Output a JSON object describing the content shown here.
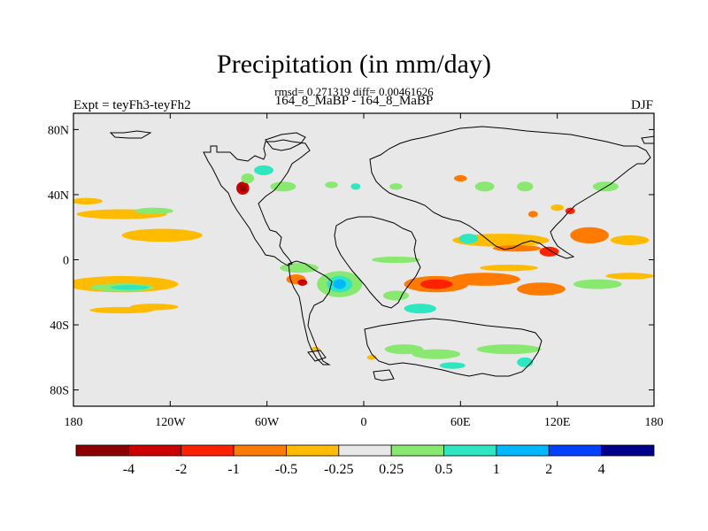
{
  "header": {
    "title": "Precipitation (in mm/day)",
    "stats": "rmsd= 0.271319 diff= 0.00461626",
    "subtitle": "164_8_MaBP - 164_8_MaBP",
    "left_label": "Expt = teyFh3-teyFh2",
    "right_label": "DJF"
  },
  "axes": {
    "lat_ticks": [
      {
        "value": 80,
        "label": "80N"
      },
      {
        "value": 40,
        "label": "40N"
      },
      {
        "value": 0,
        "label": "0"
      },
      {
        "value": -40,
        "label": "40S"
      },
      {
        "value": -80,
        "label": "80S"
      }
    ],
    "lon_ticks": [
      {
        "value": -180,
        "label": "180"
      },
      {
        "value": -120,
        "label": "120W"
      },
      {
        "value": -60,
        "label": "60W"
      },
      {
        "value": 0,
        "label": "0"
      },
      {
        "value": 60,
        "label": "60E"
      },
      {
        "value": 120,
        "label": "120E"
      },
      {
        "value": 180,
        "label": "180"
      }
    ],
    "lat_range": [
      -90,
      90
    ],
    "lon_range": [
      -180,
      180
    ]
  },
  "colorbar": {
    "colors": [
      "#8b0000",
      "#cc0000",
      "#ff2200",
      "#ff7a00",
      "#ffbb00",
      "#e8e8e8",
      "#88e870",
      "#2ee6c0",
      "#00b8ff",
      "#0040ff",
      "#00008b"
    ],
    "labels": [
      "-4",
      "-2",
      "-1",
      "-0.5",
      "-0.25",
      "0.25",
      "0.5",
      "1",
      "2",
      "4"
    ]
  },
  "colors": {
    "background": "#e8e8e8",
    "coast": "#000000"
  },
  "anomalies": [
    {
      "lon": -150,
      "lat": 28,
      "rx": 28,
      "ry": 3,
      "color": "#ffbb00"
    },
    {
      "lon": -172,
      "lat": 36,
      "rx": 10,
      "ry": 2,
      "color": "#ffbb00"
    },
    {
      "lon": -125,
      "lat": 15,
      "rx": 25,
      "ry": 4,
      "color": "#ffbb00"
    },
    {
      "lon": -150,
      "lat": -15,
      "rx": 35,
      "ry": 5,
      "color": "#ffbb00"
    },
    {
      "lon": -150,
      "lat": -17,
      "rx": 20,
      "ry": 2.5,
      "color": "#88e870"
    },
    {
      "lon": -145,
      "lat": -17,
      "rx": 12,
      "ry": 1.5,
      "color": "#2ee6c0"
    },
    {
      "lon": -130,
      "lat": 30,
      "rx": 12,
      "ry": 2,
      "color": "#88e870"
    },
    {
      "lon": -150,
      "lat": -31,
      "rx": 20,
      "ry": 2,
      "color": "#ffbb00"
    },
    {
      "lon": -130,
      "lat": -29,
      "rx": 15,
      "ry": 2,
      "color": "#ffbb00"
    },
    {
      "lon": -75,
      "lat": 44,
      "rx": 4,
      "ry": 4,
      "color": "#cc0000"
    },
    {
      "lon": -75,
      "lat": 44,
      "rx": 2,
      "ry": 2,
      "color": "#8b0000"
    },
    {
      "lon": -72,
      "lat": 50,
      "rx": 4,
      "ry": 3,
      "color": "#88e870"
    },
    {
      "lon": -62,
      "lat": 55,
      "rx": 6,
      "ry": 3,
      "color": "#2ee6c0"
    },
    {
      "lon": -50,
      "lat": 45,
      "rx": 8,
      "ry": 3,
      "color": "#88e870"
    },
    {
      "lon": -40,
      "lat": -5,
      "rx": 12,
      "ry": 3,
      "color": "#88e870"
    },
    {
      "lon": -42,
      "lat": -12,
      "rx": 6,
      "ry": 3,
      "color": "#ff7a00"
    },
    {
      "lon": -38,
      "lat": -14,
      "rx": 3,
      "ry": 2,
      "color": "#cc0000"
    },
    {
      "lon": -15,
      "lat": -15,
      "rx": 14,
      "ry": 8,
      "color": "#88e870"
    },
    {
      "lon": -15,
      "lat": -15,
      "rx": 8,
      "ry": 5,
      "color": "#2ee6c0"
    },
    {
      "lon": -15,
      "lat": -15,
      "rx": 4,
      "ry": 3,
      "color": "#00b8ff"
    },
    {
      "lon": 20,
      "lat": -22,
      "rx": 8,
      "ry": 3,
      "color": "#88e870"
    },
    {
      "lon": 35,
      "lat": -30,
      "rx": 10,
      "ry": 3,
      "color": "#2ee6c0"
    },
    {
      "lon": 20,
      "lat": 0,
      "rx": 15,
      "ry": 2,
      "color": "#88e870"
    },
    {
      "lon": 45,
      "lat": -15,
      "rx": 20,
      "ry": 5,
      "color": "#ff7a00"
    },
    {
      "lon": 45,
      "lat": -15,
      "rx": 10,
      "ry": 3,
      "color": "#ff2200"
    },
    {
      "lon": 75,
      "lat": -12,
      "rx": 22,
      "ry": 4,
      "color": "#ff7a00"
    },
    {
      "lon": 110,
      "lat": -18,
      "rx": 15,
      "ry": 4,
      "color": "#ff7a00"
    },
    {
      "lon": 90,
      "lat": -5,
      "rx": 18,
      "ry": 2,
      "color": "#ffbb00"
    },
    {
      "lon": 145,
      "lat": -15,
      "rx": 15,
      "ry": 3,
      "color": "#88e870"
    },
    {
      "lon": 165,
      "lat": -10,
      "rx": 15,
      "ry": 2,
      "color": "#ffbb00"
    },
    {
      "lon": 85,
      "lat": 12,
      "rx": 30,
      "ry": 4,
      "color": "#ffbb00"
    },
    {
      "lon": 95,
      "lat": 7,
      "rx": 15,
      "ry": 2,
      "color": "#ff7a00"
    },
    {
      "lon": 65,
      "lat": 13,
      "rx": 6,
      "ry": 3,
      "color": "#2ee6c0"
    },
    {
      "lon": 115,
      "lat": 5,
      "rx": 6,
      "ry": 3,
      "color": "#ff2200"
    },
    {
      "lon": 140,
      "lat": 15,
      "rx": 12,
      "ry": 5,
      "color": "#ff7a00"
    },
    {
      "lon": 165,
      "lat": 12,
      "rx": 12,
      "ry": 3,
      "color": "#ffbb00"
    },
    {
      "lon": 75,
      "lat": 45,
      "rx": 6,
      "ry": 3,
      "color": "#88e870"
    },
    {
      "lon": 100,
      "lat": 45,
      "rx": 5,
      "ry": 3,
      "color": "#88e870"
    },
    {
      "lon": 150,
      "lat": 45,
      "rx": 8,
      "ry": 3,
      "color": "#88e870"
    },
    {
      "lon": 60,
      "lat": 50,
      "rx": 4,
      "ry": 2,
      "color": "#ff7a00"
    },
    {
      "lon": 20,
      "lat": 45,
      "rx": 4,
      "ry": 2,
      "color": "#88e870"
    },
    {
      "lon": 25,
      "lat": -55,
      "rx": 12,
      "ry": 3,
      "color": "#88e870"
    },
    {
      "lon": 45,
      "lat": -58,
      "rx": 15,
      "ry": 3,
      "color": "#88e870"
    },
    {
      "lon": 55,
      "lat": -65,
      "rx": 8,
      "ry": 2,
      "color": "#2ee6c0"
    },
    {
      "lon": 90,
      "lat": -55,
      "rx": 20,
      "ry": 3,
      "color": "#88e870"
    },
    {
      "lon": 100,
      "lat": -63,
      "rx": 5,
      "ry": 3,
      "color": "#2ee6c0"
    },
    {
      "lon": -20,
      "lat": 46,
      "rx": 4,
      "ry": 2,
      "color": "#88e870"
    },
    {
      "lon": -5,
      "lat": 45,
      "rx": 3,
      "ry": 2,
      "color": "#2ee6c0"
    },
    {
      "lon": 105,
      "lat": 28,
      "rx": 3,
      "ry": 2,
      "color": "#ff7a00"
    },
    {
      "lon": 120,
      "lat": 32,
      "rx": 4,
      "ry": 2,
      "color": "#ffbb00"
    },
    {
      "lon": 128,
      "lat": 30,
      "rx": 3,
      "ry": 2,
      "color": "#ff2200"
    },
    {
      "lon": -30,
      "lat": -55,
      "rx": 3,
      "ry": 1.5,
      "color": "#ffbb00"
    },
    {
      "lon": 5,
      "lat": -60,
      "rx": 3,
      "ry": 1.5,
      "color": "#ffbb00"
    }
  ]
}
